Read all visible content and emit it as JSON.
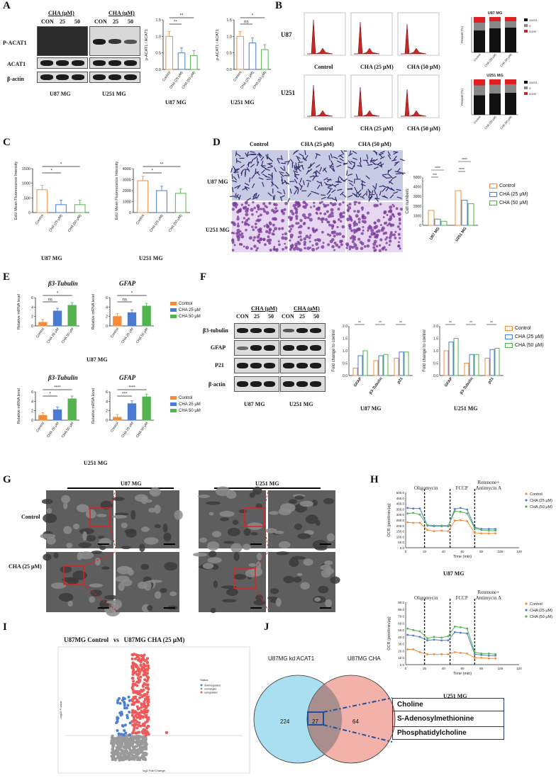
{
  "panels": {
    "A": "A",
    "B": "B",
    "C": "C",
    "D": "D",
    "E": "E",
    "F": "F",
    "G": "G",
    "H": "H",
    "I": "I",
    "J": "J"
  },
  "colors": {
    "control": "#f28c3a",
    "cha25": "#4a7bd0",
    "cha50": "#52b34f",
    "venn_left": "#a9dff0",
    "venn_right": "#f0a39a",
    "volcano_red": "#ee5a5a",
    "volcano_blue": "#4d7fd6",
    "volcano_grey": "#9a9a9a"
  },
  "panelA": {
    "cha_header_u87": "CHA (μM)",
    "cha_header_u251": "CHA (μM)",
    "cols_u87": [
      "CON",
      "25",
      "50"
    ],
    "cols_u251": [
      "CON",
      "25",
      "50"
    ],
    "rows": [
      "P-ACAT1",
      "ACAT1",
      "β-actin"
    ],
    "cell_u87": "U87 MG",
    "cell_u251": "U251 MG",
    "chart_ylabel": "p-ACAT1 / ACAT1",
    "chart1_title": "U87 MG",
    "chart2_title": "U251 MG",
    "chart_categories": [
      "Control",
      "CHA (25 μM)",
      "CHA (50 μM)"
    ],
    "sig_u87": [
      "**",
      "**"
    ],
    "sig_u251": [
      "ns",
      "*"
    ],
    "yticks_u87": [
      "0.0",
      "0.5",
      "1.0",
      "1.5"
    ],
    "yticks_u251": [
      "0.0",
      "0.5",
      "1.0",
      "1.5"
    ]
  },
  "panelB": {
    "row_u87": "U87",
    "row_u251": "U251",
    "cols": [
      "Control",
      "CHA (25 μM)",
      "CHA (50 μM)"
    ],
    "bar_u87_title": "U87 MG",
    "bar_u251_title": "U251 MG",
    "legend": [
      "G0/G1",
      "S",
      "G2/M"
    ],
    "ylabel": "Percent (%)"
  },
  "panelC": {
    "ylabel": "EdU Mean Fluorescence Intensity",
    "categories": [
      "Control",
      "CHA (25 μM)",
      "CHA (50 μM)"
    ],
    "cell_u87": "U87 MG",
    "cell_u251": "U251 MG",
    "sig_u87": [
      "*",
      "*"
    ],
    "sig_u251": [
      "*",
      "**"
    ],
    "yticks_u87": [
      "0",
      "500",
      "1000",
      "1500"
    ],
    "yticks_u251": [
      "0",
      "1000",
      "2000",
      "3000",
      "4000"
    ]
  },
  "panelD": {
    "cols": [
      "Control",
      "CHA (25 μM)",
      "CHA (50 μM)"
    ],
    "rows": [
      "U87 MG",
      "U251 MG"
    ],
    "ylabel": "Cell numbers",
    "xcats": [
      "U87 MG",
      "U251 MG"
    ],
    "legend": [
      "Control",
      "CHA (25 μM)",
      "CHA (50 μM)"
    ],
    "sig": [
      "****",
      "***",
      "****",
      "****"
    ],
    "yticks": [
      "0",
      "1000",
      "2000",
      "3000",
      "4000",
      "5000"
    ]
  },
  "panelE": {
    "gene1": "β3-Tubulin",
    "gene2": "GFAP",
    "ylabel": "Relative mRNA level",
    "categories": [
      "Control",
      "CHA 25 μM",
      "CHA 50 μM"
    ],
    "legend": [
      "Control",
      "CHA 25 μM",
      "CHA 50 μM"
    ],
    "cell_u87": "U87 MG",
    "cell_u251": "U251 MG",
    "sig_u87_tub": [
      "ns",
      "*"
    ],
    "sig_u87_gfap": [
      "ns",
      "*"
    ],
    "sig_u251_tub": [
      "*",
      "****"
    ],
    "sig_u251_gfap": [
      "***",
      "****"
    ]
  },
  "panelF": {
    "cha_header_u87": "CHA (μM)",
    "cha_header_u251": "CHA (μM)",
    "cols_u87": [
      "CON",
      "25",
      "50"
    ],
    "cols_u251": [
      "CON",
      "25",
      "50"
    ],
    "rows": [
      "β3-tubulin",
      "GFAP",
      "P21",
      "β-actin"
    ],
    "cell_u87": "U87 MG",
    "cell_u251": "U251 MG",
    "ylabel": "Fold change to control",
    "xcats": [
      "GFAP",
      "β3-Tubulin",
      "p21"
    ],
    "legend": [
      "Control",
      "CHA (25 μM)",
      "CHA (50 μM)"
    ],
    "chart1_title": "U87 MG",
    "chart2_title": "U251 MG"
  },
  "panelG": {
    "col_u87": "U87 MG",
    "col_u251": "U251 MG",
    "row_control": "Control",
    "row_cha": "CHA (25 μM)"
  },
  "panelH": {
    "annot_oligo": "Oligomycin",
    "annot_fccp": "FCCP",
    "annot_rot": "Rotenone+",
    "annot_anti": "Antimycin A",
    "ylabel": "OCR (pmol/min/μg)",
    "xlabel": "Time (min)",
    "legend": [
      "Control",
      "CHA (25 μM)",
      "CHA (50 μM)"
    ],
    "cell_u87": "U87 MG",
    "cell_u251": "U251 MG",
    "yticks_top": [
      "0.0",
      "50.0",
      "100.0",
      "150.0",
      "200.0",
      "250.0",
      "300.0",
      "350.0",
      "400.0",
      "450.0",
      "500.0"
    ],
    "yticks_bottom": [
      "0.0",
      "10.0",
      "20.0",
      "30.0",
      "40.0",
      "50.0",
      "60.0",
      "70.0",
      "80.0",
      "90.0"
    ],
    "xticks": [
      "0",
      "20",
      "40",
      "60",
      "80",
      "100",
      "120"
    ]
  },
  "panelI": {
    "title": "U87MG Control   vs   U87MG CHA (25 μM)",
    "ylabel": "-log10 P-value",
    "xlabel": "log2 Fold Change",
    "legend_title": "Status",
    "legend": [
      "downregulated",
      "unchanged",
      "upregulated"
    ]
  },
  "panelJ": {
    "left_label": "U87MG kd ACAT1",
    "right_label": "U87MG CHA",
    "left_only": "224",
    "overlap": "27",
    "right_only": "64",
    "metabolites": [
      "Choline",
      "S-Adenosylmethionine",
      "Phosphatidylcholine"
    ]
  },
  "chart_data": [
    {
      "type": "bar",
      "title": "U87 MG",
      "ylabel": "p-ACAT1 / ACAT1",
      "categories": [
        "Control",
        "CHA (25 μM)",
        "CHA (50 μM)"
      ],
      "values": [
        1.0,
        0.5,
        0.42
      ],
      "ylim": [
        0,
        1.5
      ]
    },
    {
      "type": "bar",
      "title": "U251 MG",
      "ylabel": "p-ACAT1 / ACAT1",
      "categories": [
        "Control",
        "CHA (25 μM)",
        "CHA (50 μM)"
      ],
      "values": [
        1.0,
        0.8,
        0.6
      ],
      "ylim": [
        0,
        1.5
      ]
    },
    {
      "type": "bar",
      "title": "U87 MG",
      "ylabel": "Percent (%)",
      "categories": [
        "Control",
        "CHA (25 μM)",
        "CHA (50 μM)"
      ],
      "series": [
        {
          "name": "G0/G1",
          "values": [
            62,
            68,
            70
          ]
        },
        {
          "name": "S",
          "values": [
            22,
            20,
            18
          ]
        },
        {
          "name": "G2/M",
          "values": [
            16,
            12,
            12
          ]
        }
      ],
      "ylim": [
        0,
        100
      ]
    },
    {
      "type": "bar",
      "title": "U251 MG",
      "ylabel": "Percent (%)",
      "categories": [
        "Control",
        "CHA (25 μM)",
        "CHA (50 μM)"
      ],
      "series": [
        {
          "name": "G0/G1",
          "values": [
            55,
            60,
            62
          ]
        },
        {
          "name": "S",
          "values": [
            28,
            25,
            24
          ]
        },
        {
          "name": "G2/M",
          "values": [
            17,
            15,
            14
          ]
        }
      ],
      "ylim": [
        0,
        100
      ]
    },
    {
      "type": "bar",
      "title": "",
      "ylabel": "EdU Mean Fluorescence Intensity",
      "categories": [
        "Control",
        "CHA (25 μM)",
        "CHA (50 μM)"
      ],
      "values": [
        780,
        270,
        270
      ],
      "ylim": [
        0,
        1500
      ]
    },
    {
      "type": "bar",
      "title": "",
      "ylabel": "EdU Mean Fluorescence Intensity",
      "categories": [
        "Control",
        "CHA (25 μM)",
        "CHA (50 μM)"
      ],
      "values": [
        2900,
        2000,
        1750
      ],
      "ylim": [
        0,
        4000
      ]
    },
    {
      "type": "bar",
      "ylabel": "Cell numbers",
      "categories": [
        "U87 MG",
        "U251 MG"
      ],
      "series": [
        {
          "name": "Control",
          "values": [
            1550,
            3600
          ]
        },
        {
          "name": "CHA (25 μM)",
          "values": [
            650,
            2600
          ]
        },
        {
          "name": "CHA (50 μM)",
          "values": [
            420,
            2250
          ]
        }
      ],
      "ylim": [
        0,
        5000
      ]
    },
    {
      "type": "line",
      "title": "",
      "ylabel": "OCR (pmol/min/μg)",
      "xlabel": "Time (min)",
      "x": [
        2,
        8,
        15,
        23,
        30,
        38,
        45,
        52,
        58,
        65,
        73,
        80,
        88,
        95
      ],
      "series": [
        {
          "name": "Control",
          "values": [
            230,
            225,
            225,
            160,
            150,
            155,
            150,
            245,
            250,
            240,
            135,
            130,
            130,
            130
          ]
        },
        {
          "name": "CHA (25 μM)",
          "values": [
            360,
            355,
            355,
            200,
            195,
            195,
            195,
            350,
            360,
            345,
            185,
            170,
            170,
            170
          ]
        },
        {
          "name": "CHA (50 μM)",
          "values": [
            310,
            315,
            300,
            205,
            200,
            200,
            200,
            330,
            325,
            310,
            175,
            160,
            155,
            155
          ]
        }
      ],
      "ylim": [
        0,
        500
      ]
    },
    {
      "type": "line",
      "title": "",
      "ylabel": "OCR (pmol/min/μg)",
      "xlabel": "Time (min)",
      "x": [
        2,
        8,
        15,
        23,
        30,
        38,
        45,
        52,
        58,
        65,
        73,
        80,
        88,
        95
      ],
      "series": [
        {
          "name": "Control",
          "values": [
            22,
            22,
            18,
            15,
            15,
            15,
            15,
            18,
            17,
            16,
            10,
            10,
            9,
            9
          ]
        },
        {
          "name": "CHA (25 μM)",
          "values": [
            43,
            42,
            40,
            35,
            36,
            35,
            35,
            47,
            46,
            45,
            15,
            14,
            13,
            13
          ]
        },
        {
          "name": "CHA (50 μM)",
          "values": [
            52,
            50,
            48,
            38,
            40,
            39,
            41,
            55,
            54,
            52,
            18,
            16,
            16,
            15
          ]
        }
      ],
      "ylim": [
        0,
        90
      ]
    }
  ]
}
